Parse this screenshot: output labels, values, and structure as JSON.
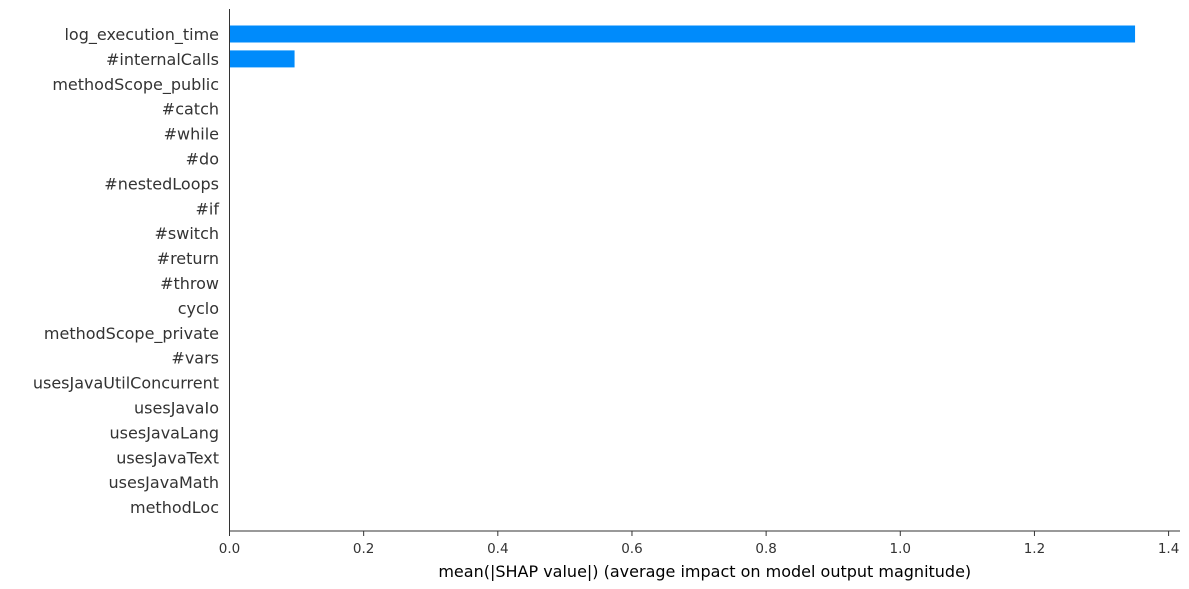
{
  "chart_data": {
    "type": "bar",
    "orientation": "horizontal",
    "categories": [
      "log_execution_time",
      "#internalCalls",
      "methodScope_public",
      "#catch",
      "#while",
      "#do",
      "#nestedLoops",
      "#if",
      "#switch",
      "#return",
      "#throw",
      "cyclo",
      "methodScope_private",
      "#vars",
      "usesJavaUtilConcurrent",
      "usesJavaIo",
      "usesJavaLang",
      "usesJavaText",
      "usesJavaMath",
      "methodLoc"
    ],
    "values": [
      1.35,
      0.097,
      0,
      0,
      0,
      0,
      0,
      0,
      0,
      0,
      0,
      0,
      0,
      0,
      0,
      0,
      0,
      0,
      0,
      0
    ],
    "xlabel": "mean(|SHAP value|) (average impact on model output magnitude)",
    "ylabel": "",
    "xlim": [
      0,
      1.417
    ],
    "xticks": [
      0,
      0.2,
      0.4,
      0.6,
      0.8,
      1.0,
      1.2,
      1.4
    ],
    "xtick_labels": [
      "0.0",
      "0.2",
      "0.4",
      "0.6",
      "0.8",
      "1.0",
      "1.2",
      "1.4"
    ],
    "bar_color": "#008bfb",
    "axis_color": "#333333",
    "grid": false,
    "legend": "none"
  }
}
